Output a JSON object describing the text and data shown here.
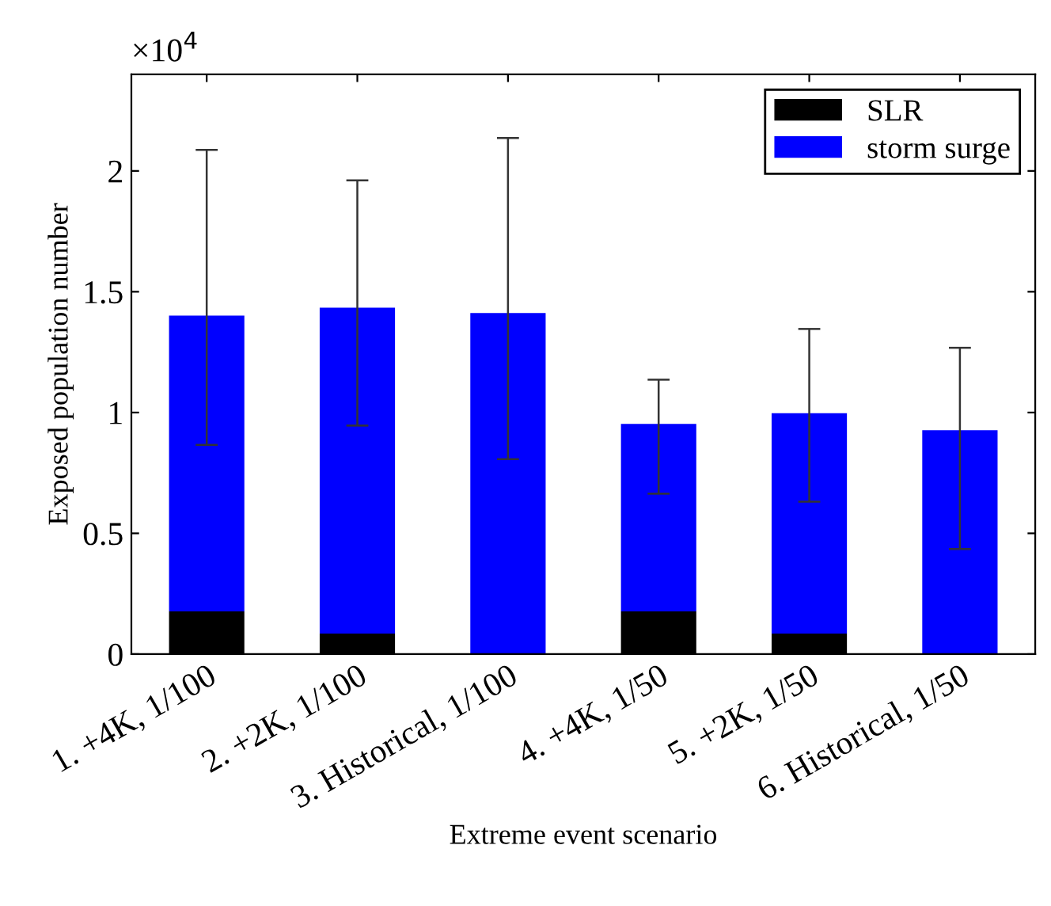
{
  "chart_data": {
    "type": "bar",
    "stacked": true,
    "xlabel": "Extreme event scenario",
    "ylabel": "Exposed population number",
    "annotations": [
      "×10$^{4}$"
    ],
    "categories": [
      "1. +4K, 1/100",
      "2. +2K, 1/100",
      "3. Historical, 1/100",
      "4. +4K, 1/50",
      "5. +2K, 1/50",
      "6. Historical, 1/50"
    ],
    "series": [
      {
        "name": "SLR",
        "color": "#000000",
        "values": [
          0.177,
          0.085,
          0,
          0.177,
          0.085,
          0
        ]
      },
      {
        "name": "storm surge",
        "color": "#0000ff",
        "values": [
          1.224,
          1.349,
          1.412,
          0.776,
          0.912,
          0.927
        ],
        "errors": [
          [
            0.866,
            2.087
          ],
          [
            0.946,
            1.961
          ],
          [
            0.807,
            2.136
          ],
          [
            0.664,
            1.136
          ],
          [
            0.631,
            1.346
          ],
          [
            0.435,
            1.268
          ]
        ]
      }
    ],
    "ylim": [
      0,
      2.4
    ],
    "yticks": [
      0,
      0.5,
      1,
      1.5,
      2
    ],
    "legend": "top right",
    "grid": false
  }
}
